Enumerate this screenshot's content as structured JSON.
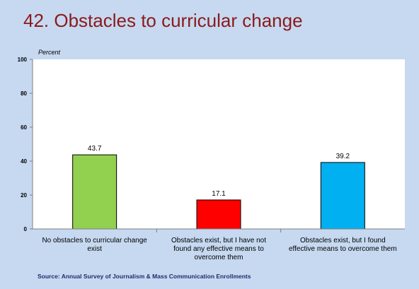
{
  "title": "42. Obstacles to curricular change",
  "source": "Source: Annual Survey of Journalism & Mass Communication Enrollments",
  "chart_data": {
    "type": "bar",
    "title": "42. Obstacles to curricular change",
    "ylabel": "Percent",
    "xlabel": "",
    "ylim": [
      0,
      100
    ],
    "yticks": [
      0,
      20,
      40,
      60,
      80,
      100
    ],
    "grid": false,
    "categories": [
      [
        "No obstacles to curricular change",
        "exist"
      ],
      [
        "Obstacles exist, but I have not",
        "found any effective means to",
        "overcome them"
      ],
      [
        "Obstacles exist, but I found",
        "effective means to overcome them"
      ]
    ],
    "values": [
      43.7,
      17.1,
      39.2
    ],
    "value_labels": [
      "43.7",
      "17.1",
      "39.2"
    ],
    "colors": [
      "#92d050",
      "#ff0000",
      "#00b0f0"
    ]
  }
}
